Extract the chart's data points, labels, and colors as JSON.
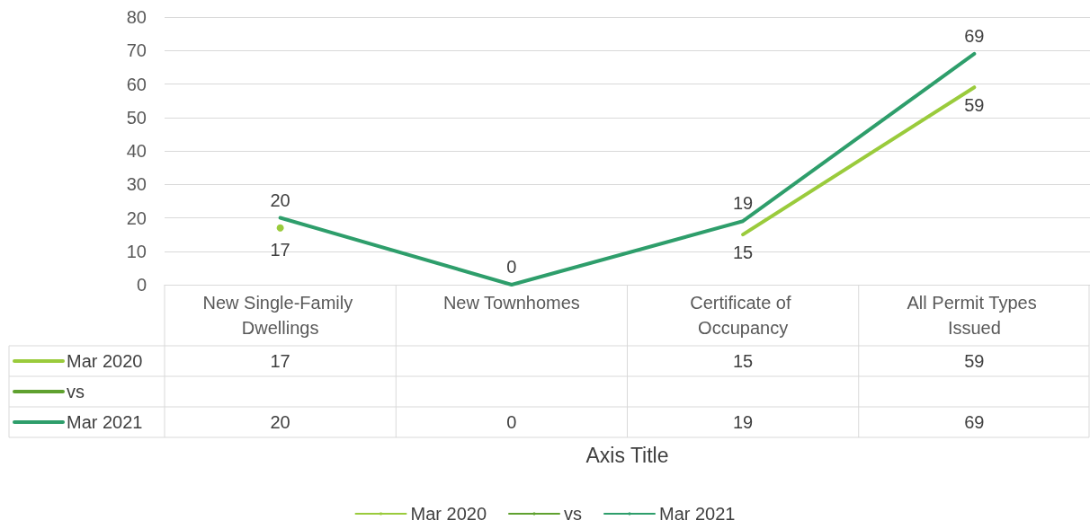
{
  "chart_data": {
    "type": "line",
    "annotations": [
      "Axis Title"
    ],
    "categories": [
      "New Single-Family Dwellings",
      "New Townhomes",
      "Certificate of Occupancy",
      "All Permit Types Issued"
    ],
    "series": [
      {
        "name": "Mar 2020",
        "color": "#9acb3c",
        "values": [
          17,
          null,
          15,
          59
        ],
        "value_labels": [
          "17",
          null,
          "15",
          "59"
        ]
      },
      {
        "name": "vs",
        "color": "#5fa12f",
        "values": [
          null,
          null,
          null,
          null
        ]
      },
      {
        "name": "Mar 2021",
        "color": "#2e9e6b",
        "values": [
          20,
          0,
          19,
          69
        ],
        "value_labels": [
          "20",
          "0",
          "19",
          "69"
        ]
      }
    ],
    "ylim": [
      0,
      80
    ],
    "yticks": [
      0,
      10,
      20,
      30,
      40,
      50,
      60,
      70,
      80
    ],
    "grid": "y",
    "legend": "bottom",
    "data_labels": true,
    "marker": "none",
    "line_style": "solid"
  }
}
